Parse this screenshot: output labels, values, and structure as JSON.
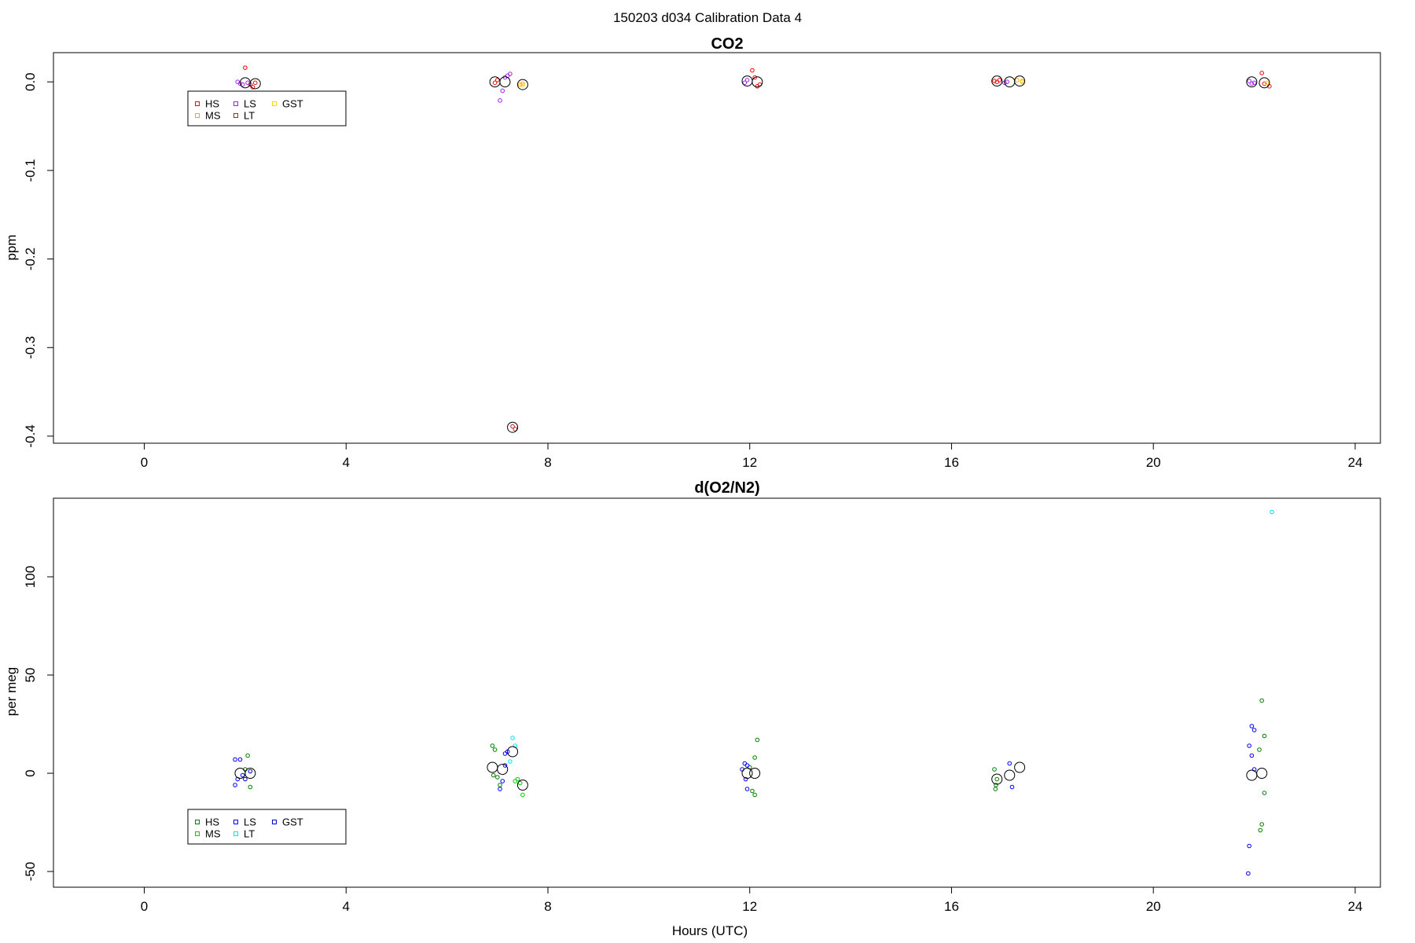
{
  "figure_title": "150203   d034   Calibration Data 4",
  "x_axis_title": "Hours (UTC)",
  "colors": {
    "co2": {
      "HS": "#ff0000",
      "MS": "#ffa500",
      "LS": "#a020f0",
      "LT": "#b22222",
      "GST": "#ffd700"
    },
    "o2": {
      "HS": "#008000",
      "MS": "#00cd00",
      "LS": "#0000ff",
      "LT": "#00e5ee",
      "GST": "#0000cd"
    },
    "mean_marker": "#000000",
    "axis": "#000000"
  },
  "chart_data": [
    {
      "type": "scatter",
      "title": "CO2",
      "xlabel": "",
      "ylabel": "ppm",
      "xlim": [
        -1.8,
        24.5
      ],
      "ylim": [
        -0.408,
        0.033
      ],
      "xticks": [
        0,
        4,
        8,
        12,
        16,
        20,
        24
      ],
      "yticks": [
        0.0,
        -0.1,
        -0.2,
        -0.3,
        -0.4
      ],
      "ytick_labels": [
        "0.0",
        "-0.1",
        "-0.2",
        "-0.3",
        "-0.4"
      ],
      "grid": false,
      "legend": {
        "placement": "top-left",
        "entries": [
          "HS",
          "MS",
          "LS",
          "LT",
          "GST"
        ]
      },
      "series": [
        {
          "name": "HS",
          "points": [
            [
              2.0,
              0.016
            ],
            [
              2.1,
              -0.003
            ],
            [
              2.15,
              -0.006
            ],
            [
              2.2,
              -0.001
            ],
            [
              6.95,
              -0.001
            ],
            [
              7.0,
              0.002
            ],
            [
              12.05,
              0.013
            ],
            [
              12.1,
              0.005
            ],
            [
              12.15,
              -0.005
            ],
            [
              12.2,
              -0.003
            ],
            [
              16.85,
              0.001
            ],
            [
              16.9,
              0.0
            ],
            [
              16.95,
              0.002
            ],
            [
              22.15,
              0.01
            ],
            [
              22.2,
              -0.002
            ],
            [
              22.3,
              -0.005
            ]
          ]
        },
        {
          "name": "MS",
          "points": [
            [
              7.45,
              -0.003
            ],
            [
              7.5,
              -0.002
            ],
            [
              17.3,
              0.002
            ],
            [
              17.4,
              0.001
            ]
          ]
        },
        {
          "name": "LS",
          "points": [
            [
              1.85,
              0.0
            ],
            [
              1.9,
              -0.002
            ],
            [
              1.95,
              -0.003
            ],
            [
              2.05,
              -0.001
            ],
            [
              7.15,
              0.005
            ],
            [
              7.2,
              0.007
            ],
            [
              7.25,
              0.009
            ],
            [
              7.1,
              -0.01
            ],
            [
              7.05,
              -0.021
            ],
            [
              11.95,
              0.002
            ],
            [
              11.9,
              -0.001
            ],
            [
              17.05,
              -0.001
            ],
            [
              17.1,
              0.0
            ],
            [
              21.9,
              0.001
            ],
            [
              21.95,
              -0.002
            ],
            [
              22.0,
              -0.001
            ]
          ]
        },
        {
          "name": "LT",
          "points": [
            [
              7.3,
              -0.389
            ],
            [
              7.35,
              -0.392
            ]
          ]
        },
        {
          "name": "GST",
          "points": [
            [
              7.5,
              -0.004
            ],
            [
              17.4,
              0.0
            ],
            [
              22.25,
              -0.001
            ]
          ]
        }
      ],
      "means": [
        [
          2.0,
          -0.001
        ],
        [
          2.2,
          -0.002
        ],
        [
          6.95,
          0.0
        ],
        [
          7.15,
          0.0
        ],
        [
          7.3,
          -0.39
        ],
        [
          7.5,
          -0.003
        ],
        [
          11.95,
          0.001
        ],
        [
          12.15,
          0.0
        ],
        [
          16.9,
          0.001
        ],
        [
          17.15,
          0.0
        ],
        [
          17.35,
          0.001
        ],
        [
          21.95,
          0.0
        ],
        [
          22.2,
          -0.001
        ]
      ]
    },
    {
      "type": "scatter",
      "title": "d(O2/N2)",
      "xlabel": "Hours (UTC)",
      "ylabel": "per meg",
      "xlim": [
        -1.8,
        24.5
      ],
      "ylim": [
        -58,
        140
      ],
      "xticks": [
        0,
        4,
        8,
        12,
        16,
        20,
        24
      ],
      "yticks": [
        100,
        50,
        0,
        -50
      ],
      "ytick_labels": [
        "100",
        "50",
        "0",
        "-50"
      ],
      "grid": false,
      "legend": {
        "placement": "bottom-left",
        "entries": [
          "HS",
          "MS",
          "LS",
          "LT",
          "GST"
        ]
      },
      "series": [
        {
          "name": "HS",
          "points": [
            [
              2.05,
              9
            ],
            [
              2.1,
              -7
            ],
            [
              2.0,
              2
            ],
            [
              6.9,
              14
            ],
            [
              6.95,
              12
            ],
            [
              6.92,
              -1
            ],
            [
              7.0,
              -2
            ],
            [
              7.05,
              -6
            ],
            [
              12.15,
              17
            ],
            [
              12.1,
              8
            ],
            [
              12.05,
              -9
            ],
            [
              12.1,
              -11
            ],
            [
              12.0,
              3
            ],
            [
              16.85,
              2
            ],
            [
              16.9,
              -3
            ],
            [
              16.88,
              -6
            ],
            [
              16.87,
              -8
            ],
            [
              22.15,
              37
            ],
            [
              22.2,
              19
            ],
            [
              22.1,
              12
            ],
            [
              22.2,
              -10
            ],
            [
              22.15,
              -26
            ],
            [
              22.12,
              -29
            ]
          ]
        },
        {
          "name": "MS",
          "points": [
            [
              7.4,
              -3
            ],
            [
              7.45,
              -5
            ],
            [
              7.5,
              -11
            ],
            [
              7.35,
              -4
            ]
          ]
        },
        {
          "name": "LS",
          "points": [
            [
              1.8,
              7
            ],
            [
              1.9,
              7
            ],
            [
              1.85,
              -3
            ],
            [
              1.8,
              -6
            ],
            [
              1.95,
              -1
            ],
            [
              7.1,
              -4
            ],
            [
              7.15,
              4
            ],
            [
              7.2,
              11
            ],
            [
              7.15,
              10
            ],
            [
              7.05,
              -8
            ],
            [
              11.85,
              2
            ],
            [
              11.9,
              5
            ],
            [
              11.95,
              4
            ],
            [
              11.92,
              -3
            ],
            [
              11.95,
              -8
            ],
            [
              17.15,
              5
            ],
            [
              17.2,
              -7
            ],
            [
              21.95,
              24
            ],
            [
              22.0,
              22
            ],
            [
              21.9,
              14
            ],
            [
              21.95,
              9
            ],
            [
              21.9,
              -37
            ],
            [
              21.88,
              -51
            ],
            [
              22.0,
              2
            ]
          ]
        },
        {
          "name": "LT",
          "points": [
            [
              22.35,
              133
            ],
            [
              7.3,
              18
            ],
            [
              7.35,
              14
            ],
            [
              7.25,
              6
            ]
          ]
        },
        {
          "name": "GST",
          "points": [
            [
              2.0,
              -3
            ],
            [
              2.1,
              1
            ]
          ]
        }
      ],
      "means": [
        [
          1.9,
          0
        ],
        [
          2.1,
          0
        ],
        [
          6.9,
          3
        ],
        [
          7.1,
          2
        ],
        [
          7.3,
          11
        ],
        [
          7.5,
          -6
        ],
        [
          11.95,
          0
        ],
        [
          12.1,
          0
        ],
        [
          16.9,
          -3
        ],
        [
          17.15,
          -1
        ],
        [
          17.35,
          3
        ],
        [
          21.95,
          -1
        ],
        [
          22.15,
          0
        ]
      ]
    }
  ]
}
